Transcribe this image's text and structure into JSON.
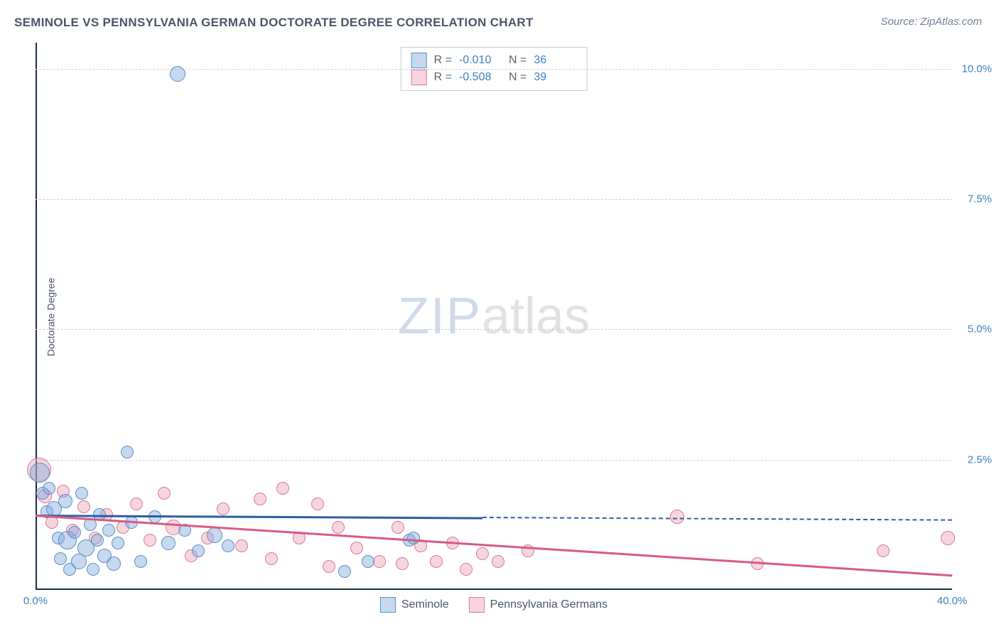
{
  "title": "SEMINOLE VS PENNSYLVANIA GERMAN DOCTORATE DEGREE CORRELATION CHART",
  "source": "Source: ZipAtlas.com",
  "ylabel": "Doctorate Degree",
  "watermark": {
    "part1": "ZIP",
    "part2": "atlas"
  },
  "colors": {
    "title": "#4a5568",
    "source": "#718096",
    "axis": "#1a2a4a",
    "grid": "#d0d0d0",
    "tick_text": "#3b82c4",
    "series_a_fill": "rgba(130,170,220,0.45)",
    "series_a_stroke": "#5b8fc9",
    "series_a_line": "#2b5ea8",
    "series_b_fill": "rgba(235,150,175,0.40)",
    "series_b_stroke": "#d87a99",
    "series_b_line": "#d85a85"
  },
  "chart": {
    "type": "scatter",
    "xlim": [
      0,
      40
    ],
    "ylim": [
      0,
      10.5
    ],
    "grid_y_values": [
      2.5,
      5.0,
      7.5,
      10.0
    ],
    "yticks": [
      {
        "v": 2.5,
        "label": "2.5%"
      },
      {
        "v": 5.0,
        "label": "5.0%"
      },
      {
        "v": 7.5,
        "label": "7.5%"
      },
      {
        "v": 10.0,
        "label": "10.0%"
      }
    ],
    "xticks": [
      {
        "v": 0,
        "label": "0.0%"
      },
      {
        "v": 40,
        "label": "40.0%"
      }
    ],
    "legend_stats": [
      {
        "series": "a",
        "R": "-0.010",
        "N": "36"
      },
      {
        "series": "b",
        "R": "-0.508",
        "N": "39"
      }
    ],
    "bottom_legend": [
      {
        "series": "a",
        "label": "Seminole"
      },
      {
        "series": "b",
        "label": "Pennsylvania Germans"
      }
    ],
    "trend_lines": [
      {
        "series": "a",
        "x1": 0,
        "y1": 1.45,
        "x2": 19.5,
        "y2": 1.4,
        "dashed_after_x": 19.5,
        "dash_to_x": 40,
        "dash_to_y": 1.35
      },
      {
        "series": "b",
        "x1": 0,
        "y1": 1.45,
        "x2": 40,
        "y2": 0.3
      }
    ],
    "series_a_points": [
      {
        "x": 0.2,
        "y": 2.25,
        "r": 13
      },
      {
        "x": 0.3,
        "y": 1.85,
        "r": 8
      },
      {
        "x": 0.5,
        "y": 1.5,
        "r": 8
      },
      {
        "x": 0.6,
        "y": 1.95,
        "r": 8
      },
      {
        "x": 0.8,
        "y": 1.55,
        "r": 10
      },
      {
        "x": 1.0,
        "y": 1.0,
        "r": 8
      },
      {
        "x": 1.1,
        "y": 0.6,
        "r": 8
      },
      {
        "x": 1.3,
        "y": 1.7,
        "r": 9
      },
      {
        "x": 1.4,
        "y": 0.95,
        "r": 12
      },
      {
        "x": 1.5,
        "y": 0.4,
        "r": 8
      },
      {
        "x": 1.7,
        "y": 1.1,
        "r": 8
      },
      {
        "x": 1.9,
        "y": 0.55,
        "r": 10
      },
      {
        "x": 2.0,
        "y": 1.85,
        "r": 8
      },
      {
        "x": 2.2,
        "y": 0.8,
        "r": 11
      },
      {
        "x": 2.4,
        "y": 1.25,
        "r": 8
      },
      {
        "x": 2.5,
        "y": 0.4,
        "r": 8
      },
      {
        "x": 2.7,
        "y": 0.95,
        "r": 8
      },
      {
        "x": 2.8,
        "y": 1.45,
        "r": 8
      },
      {
        "x": 3.0,
        "y": 0.65,
        "r": 9
      },
      {
        "x": 3.2,
        "y": 1.15,
        "r": 8
      },
      {
        "x": 3.4,
        "y": 0.5,
        "r": 9
      },
      {
        "x": 3.6,
        "y": 0.9,
        "r": 8
      },
      {
        "x": 4.0,
        "y": 2.65,
        "r": 8
      },
      {
        "x": 4.2,
        "y": 1.3,
        "r": 8
      },
      {
        "x": 4.6,
        "y": 0.55,
        "r": 8
      },
      {
        "x": 5.2,
        "y": 1.4,
        "r": 8
      },
      {
        "x": 5.8,
        "y": 0.9,
        "r": 9
      },
      {
        "x": 6.2,
        "y": 9.9,
        "r": 10
      },
      {
        "x": 6.5,
        "y": 1.15,
        "r": 8
      },
      {
        "x": 7.1,
        "y": 0.75,
        "r": 8
      },
      {
        "x": 7.8,
        "y": 1.05,
        "r": 10
      },
      {
        "x": 8.4,
        "y": 0.85,
        "r": 8
      },
      {
        "x": 13.5,
        "y": 0.35,
        "r": 8
      },
      {
        "x": 14.5,
        "y": 0.55,
        "r": 8
      },
      {
        "x": 16.3,
        "y": 0.95,
        "r": 8
      },
      {
        "x": 16.5,
        "y": 1.0,
        "r": 8
      }
    ],
    "series_b_points": [
      {
        "x": 0.15,
        "y": 2.3,
        "r": 16
      },
      {
        "x": 0.4,
        "y": 1.8,
        "r": 9
      },
      {
        "x": 0.7,
        "y": 1.3,
        "r": 8
      },
      {
        "x": 1.2,
        "y": 1.9,
        "r": 8
      },
      {
        "x": 1.6,
        "y": 1.15,
        "r": 8
      },
      {
        "x": 2.1,
        "y": 1.6,
        "r": 8
      },
      {
        "x": 2.6,
        "y": 1.0,
        "r": 8
      },
      {
        "x": 3.1,
        "y": 1.45,
        "r": 8
      },
      {
        "x": 3.8,
        "y": 1.2,
        "r": 8
      },
      {
        "x": 4.4,
        "y": 1.65,
        "r": 8
      },
      {
        "x": 5.0,
        "y": 0.95,
        "r": 8
      },
      {
        "x": 5.6,
        "y": 1.85,
        "r": 8
      },
      {
        "x": 6.0,
        "y": 1.2,
        "r": 10
      },
      {
        "x": 6.8,
        "y": 0.65,
        "r": 8
      },
      {
        "x": 7.5,
        "y": 1.0,
        "r": 8
      },
      {
        "x": 8.2,
        "y": 1.55,
        "r": 8
      },
      {
        "x": 9.0,
        "y": 0.85,
        "r": 8
      },
      {
        "x": 9.8,
        "y": 1.75,
        "r": 8
      },
      {
        "x": 10.3,
        "y": 0.6,
        "r": 8
      },
      {
        "x": 10.8,
        "y": 1.95,
        "r": 8
      },
      {
        "x": 11.5,
        "y": 1.0,
        "r": 8
      },
      {
        "x": 12.3,
        "y": 1.65,
        "r": 8
      },
      {
        "x": 12.8,
        "y": 0.45,
        "r": 8
      },
      {
        "x": 13.2,
        "y": 1.2,
        "r": 8
      },
      {
        "x": 14.0,
        "y": 0.8,
        "r": 8
      },
      {
        "x": 15.0,
        "y": 0.55,
        "r": 8
      },
      {
        "x": 15.8,
        "y": 1.2,
        "r": 8
      },
      {
        "x": 16.0,
        "y": 0.5,
        "r": 8
      },
      {
        "x": 16.8,
        "y": 0.85,
        "r": 8
      },
      {
        "x": 17.5,
        "y": 0.55,
        "r": 8
      },
      {
        "x": 18.2,
        "y": 0.9,
        "r": 8
      },
      {
        "x": 18.8,
        "y": 0.4,
        "r": 8
      },
      {
        "x": 19.5,
        "y": 0.7,
        "r": 8
      },
      {
        "x": 20.2,
        "y": 0.55,
        "r": 8
      },
      {
        "x": 21.5,
        "y": 0.75,
        "r": 8
      },
      {
        "x": 28.0,
        "y": 1.4,
        "r": 9
      },
      {
        "x": 31.5,
        "y": 0.5,
        "r": 8
      },
      {
        "x": 37.0,
        "y": 0.75,
        "r": 8
      },
      {
        "x": 39.8,
        "y": 1.0,
        "r": 9
      }
    ]
  }
}
